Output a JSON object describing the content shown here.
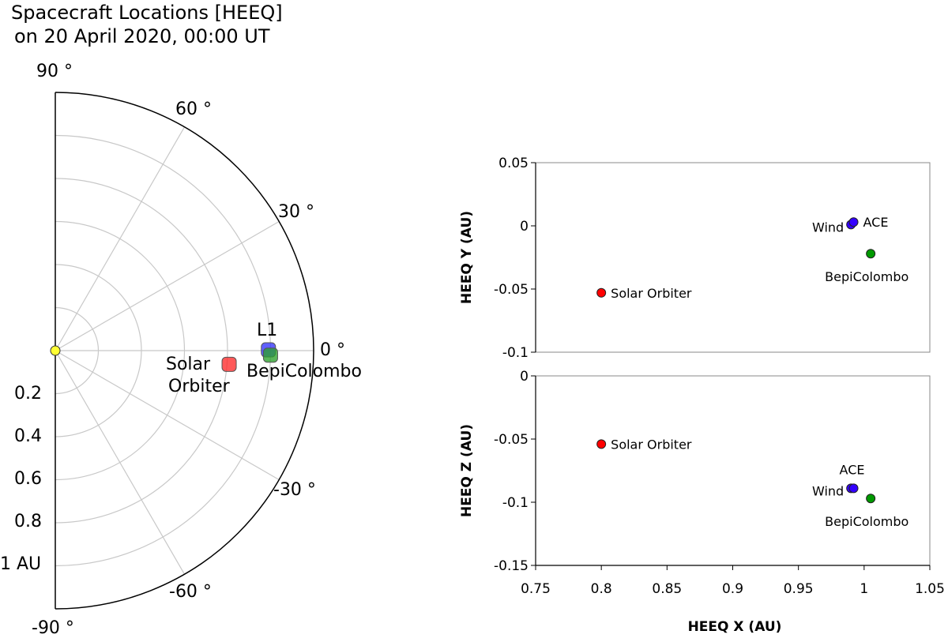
{
  "chart_data": [
    {
      "type": "polar",
      "title_line1": "Spacecraft Locations [HEEQ]",
      "title_line2": "on 20 April 2020, 00:00 UT",
      "angle_range_deg": [
        -90,
        90
      ],
      "radial_range": [
        0,
        1.2
      ],
      "angle_ticks": [
        {
          "deg": 90,
          "label": "90 °"
        },
        {
          "deg": 60,
          "label": "60 °"
        },
        {
          "deg": 30,
          "label": "30 °"
        },
        {
          "deg": 0,
          "label": "0 °"
        },
        {
          "deg": -30,
          "label": "-30 °"
        },
        {
          "deg": -60,
          "label": "-60 °"
        },
        {
          "deg": -90,
          "label": "-90 °"
        }
      ],
      "radial_ticks": [
        {
          "r": 0.2,
          "label": "0.2"
        },
        {
          "r": 0.4,
          "label": "0.4"
        },
        {
          "r": 0.6,
          "label": "0.6"
        },
        {
          "r": 0.8,
          "label": "0.8"
        },
        {
          "r": 1.0,
          "label": "1 AU"
        }
      ],
      "sun": {
        "r": 0,
        "deg": 0,
        "color": "#ffff33"
      },
      "points": [
        {
          "name": "Solar Orbiter",
          "label_lines": [
            "Solar",
            "Orbiter"
          ],
          "r": 0.81,
          "deg": -4.5,
          "color": "#ff2a2a"
        },
        {
          "name": "L1",
          "label_lines": [
            "L1"
          ],
          "r": 0.99,
          "deg": 0.2,
          "color": "#3333ff"
        },
        {
          "name": "BepiColombo",
          "label_lines": [
            "BepiColombo"
          ],
          "r": 1.0,
          "deg": -1.2,
          "color": "#2ca02c"
        }
      ]
    },
    {
      "type": "scatter",
      "ylabel": "HEEQ Y (AU)",
      "xlim": [
        0.75,
        1.05
      ],
      "ylim": [
        -0.1,
        0.05
      ],
      "yticks": [
        {
          "v": 0.05,
          "label": "0.05"
        },
        {
          "v": 0,
          "label": "0"
        },
        {
          "v": -0.05,
          "label": "-0.05"
        },
        {
          "v": -0.1,
          "label": "-0.1"
        }
      ],
      "points": [
        {
          "name": "Solar Orbiter",
          "x": 0.8,
          "y": -0.053,
          "color": "#ff0000",
          "label": "Solar Orbiter",
          "anchor": "right"
        },
        {
          "name": "Wind",
          "x": 0.99,
          "y": 0.001,
          "color": "#3300ff",
          "label": "Wind",
          "anchor": "left-low"
        },
        {
          "name": "ACE",
          "x": 0.992,
          "y": 0.003,
          "color": "#3300ff",
          "label": "ACE",
          "anchor": "right"
        },
        {
          "name": "BepiColombo",
          "x": 1.005,
          "y": -0.022,
          "color": "#009900",
          "label": "BepiColombo",
          "anchor": "below"
        }
      ]
    },
    {
      "type": "scatter",
      "ylabel": "HEEQ Z (AU)",
      "xlabel": "HEEQ X (AU)",
      "xlim": [
        0.75,
        1.05
      ],
      "ylim": [
        -0.15,
        0
      ],
      "xticks": [
        {
          "v": 0.75,
          "label": "0.75"
        },
        {
          "v": 0.8,
          "label": "0.8"
        },
        {
          "v": 0.85,
          "label": "0.85"
        },
        {
          "v": 0.9,
          "label": "0.9"
        },
        {
          "v": 0.95,
          "label": "0.95"
        },
        {
          "v": 1.0,
          "label": "1"
        },
        {
          "v": 1.05,
          "label": "1.05"
        }
      ],
      "yticks": [
        {
          "v": 0,
          "label": "0"
        },
        {
          "v": -0.05,
          "label": "-0.05"
        },
        {
          "v": -0.1,
          "label": "-0.1"
        },
        {
          "v": -0.15,
          "label": "-0.15"
        }
      ],
      "points": [
        {
          "name": "Solar Orbiter",
          "x": 0.8,
          "y": -0.054,
          "color": "#ff0000",
          "label": "Solar Orbiter",
          "anchor": "right"
        },
        {
          "name": "Wind",
          "x": 0.99,
          "y": -0.089,
          "color": "#3300ff",
          "label": "Wind",
          "anchor": "left-low"
        },
        {
          "name": "ACE",
          "x": 0.992,
          "y": -0.089,
          "color": "#3300ff",
          "label": "ACE",
          "anchor": "above"
        },
        {
          "name": "BepiColombo",
          "x": 1.005,
          "y": -0.097,
          "color": "#009900",
          "label": "BepiColombo",
          "anchor": "below"
        }
      ]
    }
  ]
}
